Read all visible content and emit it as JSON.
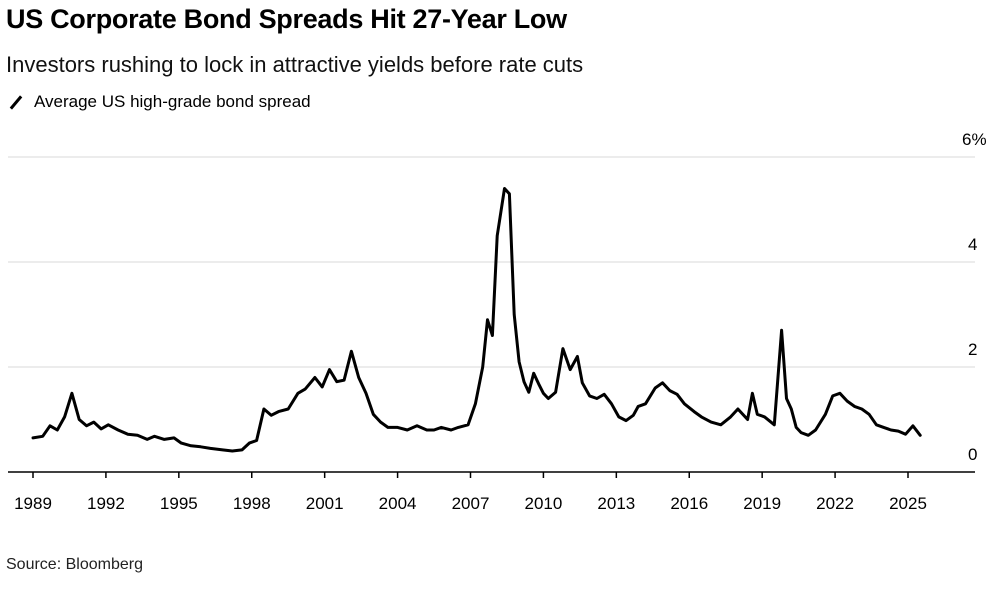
{
  "title": "US Corporate Bond Spreads Hit 27-Year Low",
  "subtitle": "Investors rushing to lock in attractive yields before rate cuts",
  "source": "Source: Bloomberg",
  "colors": {
    "line": "#000000",
    "grid": "#d9d9d9",
    "axis": "#000000"
  },
  "chart_data": {
    "type": "line",
    "title": "US Corporate Bond Spreads Hit 27-Year Low",
    "xlabel": "",
    "ylabel": "",
    "xlim": [
      1989,
      2026
    ],
    "ylim": [
      0,
      6
    ],
    "y_ticks": [
      0,
      2,
      4,
      6
    ],
    "y_tick_labels": [
      "0",
      "2",
      "4",
      "6%"
    ],
    "x_ticks": [
      1989,
      1992,
      1995,
      1998,
      2001,
      2004,
      2007,
      2010,
      2013,
      2016,
      2019,
      2022,
      2025
    ],
    "x_tick_labels": [
      "1989",
      "1992",
      "1995",
      "1998",
      "2001",
      "2004",
      "2007",
      "2010",
      "2013",
      "2016",
      "2019",
      "2022",
      "2025"
    ],
    "legend": "top-left",
    "series": [
      {
        "name": "Average US high-grade bond spread",
        "x": [
          1989.0,
          1989.4,
          1989.7,
          1990.0,
          1990.3,
          1990.6,
          1990.9,
          1991.2,
          1991.5,
          1991.8,
          1992.1,
          1992.5,
          1992.9,
          1993.3,
          1993.7,
          1994.0,
          1994.4,
          1994.8,
          1995.1,
          1995.5,
          1995.9,
          1996.3,
          1996.8,
          1997.2,
          1997.6,
          1997.9,
          1998.2,
          1998.5,
          1998.8,
          1999.1,
          1999.5,
          1999.9,
          2000.2,
          2000.6,
          2000.9,
          2001.2,
          2001.5,
          2001.8,
          2002.1,
          2002.4,
          2002.7,
          2003.0,
          2003.3,
          2003.6,
          2004.0,
          2004.4,
          2004.8,
          2005.2,
          2005.5,
          2005.8,
          2006.2,
          2006.5,
          2006.9,
          2007.2,
          2007.5,
          2007.7,
          2007.9,
          2008.1,
          2008.4,
          2008.6,
          2008.8,
          2009.0,
          2009.2,
          2009.4,
          2009.6,
          2009.8,
          2010.0,
          2010.2,
          2010.5,
          2010.8,
          2011.1,
          2011.4,
          2011.6,
          2011.9,
          2012.2,
          2012.5,
          2012.8,
          2013.1,
          2013.4,
          2013.7,
          2013.9,
          2014.2,
          2014.6,
          2014.9,
          2015.2,
          2015.5,
          2015.8,
          2016.2,
          2016.5,
          2016.9,
          2017.3,
          2017.7,
          2018.0,
          2018.4,
          2018.6,
          2018.8,
          2019.1,
          2019.5,
          2019.8,
          2020.0,
          2020.2,
          2020.4,
          2020.6,
          2020.9,
          2021.2,
          2021.6,
          2021.9,
          2022.2,
          2022.5,
          2022.8,
          2023.1,
          2023.4,
          2023.7,
          2024.0,
          2024.3,
          2024.6,
          2024.9,
          2025.2,
          2025.5
        ],
        "values": [
          0.65,
          0.68,
          0.88,
          0.8,
          1.05,
          1.5,
          1.0,
          0.88,
          0.95,
          0.82,
          0.9,
          0.8,
          0.72,
          0.7,
          0.62,
          0.68,
          0.62,
          0.65,
          0.55,
          0.5,
          0.48,
          0.45,
          0.42,
          0.4,
          0.42,
          0.55,
          0.6,
          1.2,
          1.08,
          1.15,
          1.2,
          1.5,
          1.58,
          1.8,
          1.62,
          1.95,
          1.72,
          1.75,
          2.3,
          1.8,
          1.5,
          1.1,
          0.95,
          0.85,
          0.85,
          0.8,
          0.88,
          0.8,
          0.8,
          0.85,
          0.8,
          0.85,
          0.9,
          1.3,
          2.0,
          2.9,
          2.6,
          4.5,
          5.4,
          5.3,
          3.0,
          2.1,
          1.72,
          1.52,
          1.88,
          1.68,
          1.5,
          1.4,
          1.52,
          2.35,
          1.95,
          2.2,
          1.7,
          1.45,
          1.4,
          1.48,
          1.3,
          1.05,
          0.98,
          1.08,
          1.25,
          1.3,
          1.6,
          1.7,
          1.55,
          1.48,
          1.3,
          1.15,
          1.05,
          0.95,
          0.9,
          1.05,
          1.2,
          1.0,
          1.5,
          1.1,
          1.05,
          0.9,
          2.7,
          1.4,
          1.2,
          0.85,
          0.75,
          0.7,
          0.8,
          1.1,
          1.45,
          1.5,
          1.35,
          1.25,
          1.2,
          1.1,
          0.9,
          0.85,
          0.8,
          0.78,
          0.72,
          0.88,
          0.7
        ]
      }
    ]
  }
}
